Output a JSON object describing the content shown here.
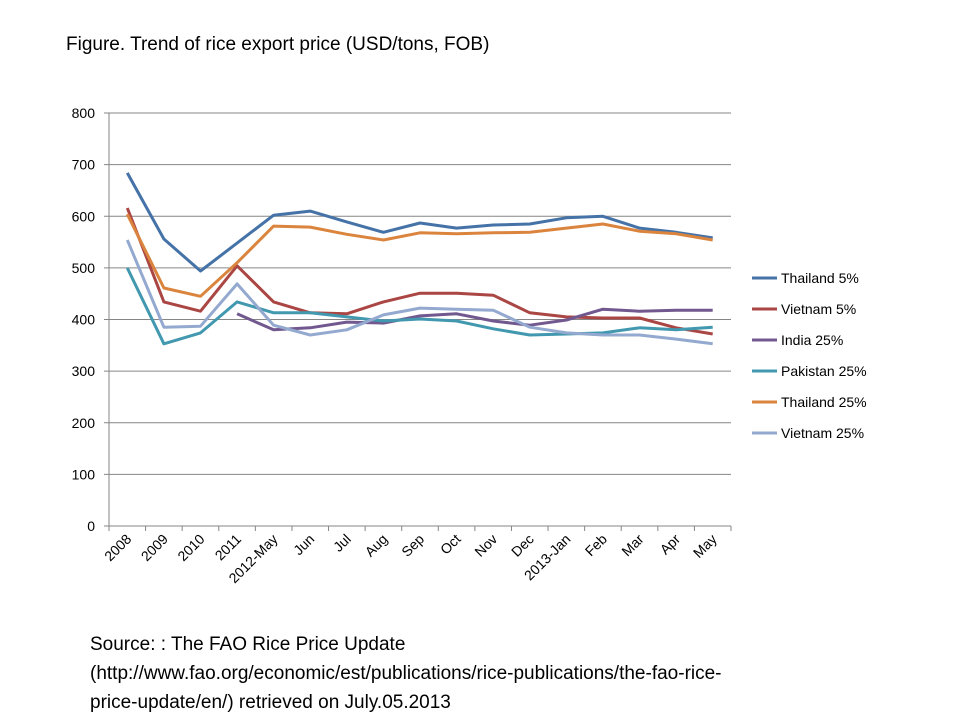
{
  "title": "Figure. Trend of rice export price (USD/tons, FOB)",
  "source": {
    "line1": "Source:  : The FAO Rice Price Update",
    "line2": "(http://www.fao.org/economic/est/publications/rice-publications/the-fao-rice-",
    "line3": "price-update/en/)  retrieved on July.05.2013"
  },
  "chart_data": {
    "type": "line",
    "title": "Figure. Trend of rice export price (USD/tons, FOB)",
    "xlabel": "",
    "ylabel": "",
    "ylim": [
      0,
      800
    ],
    "yticks": [
      0,
      100,
      200,
      300,
      400,
      500,
      600,
      700,
      800
    ],
    "grid": true,
    "legend": "right",
    "categories": [
      "2008",
      "2009",
      "2010",
      "2011",
      "2012-May",
      "Jun",
      "Jul",
      "Aug",
      "Sep",
      "Oct",
      "Nov",
      "Dec",
      "2013-Jan",
      "Feb",
      "Mar",
      "Apr",
      "May"
    ],
    "series": [
      {
        "name": "Thailand 5%",
        "color": "#4572a7",
        "values": [
          684,
          556,
          494,
          548,
          602,
          610,
          589,
          569,
          587,
          577,
          583,
          585,
          597,
          600,
          577,
          569,
          558
        ]
      },
      {
        "name": "Vietnam 5%",
        "color": "#aa4643",
        "values": [
          616,
          434,
          416,
          504,
          434,
          413,
          411,
          434,
          451,
          451,
          447,
          413,
          405,
          403,
          403,
          384,
          372
        ]
      },
      {
        "name": "India 25%",
        "color": "#71588f",
        "values": [
          null,
          null,
          null,
          411,
          380,
          384,
          395,
          393,
          407,
          411,
          397,
          389,
          399,
          420,
          416,
          418,
          418
        ]
      },
      {
        "name": "Pakistan 25%",
        "color": "#4198af",
        "values": [
          500,
          353,
          374,
          434,
          413,
          413,
          405,
          397,
          401,
          397,
          382,
          370,
          372,
          374,
          384,
          380,
          385
        ]
      },
      {
        "name": "Thailand 25%",
        "color": "#db843d",
        "values": [
          604,
          461,
          445,
          510,
          581,
          579,
          565,
          554,
          568,
          566,
          568,
          569,
          577,
          585,
          571,
          566,
          554
        ]
      },
      {
        "name": "Vietnam 25%",
        "color": "#93a9cf",
        "values": [
          554,
          385,
          387,
          469,
          389,
          370,
          380,
          409,
          422,
          420,
          418,
          385,
          374,
          370,
          370,
          362,
          353
        ]
      }
    ]
  }
}
